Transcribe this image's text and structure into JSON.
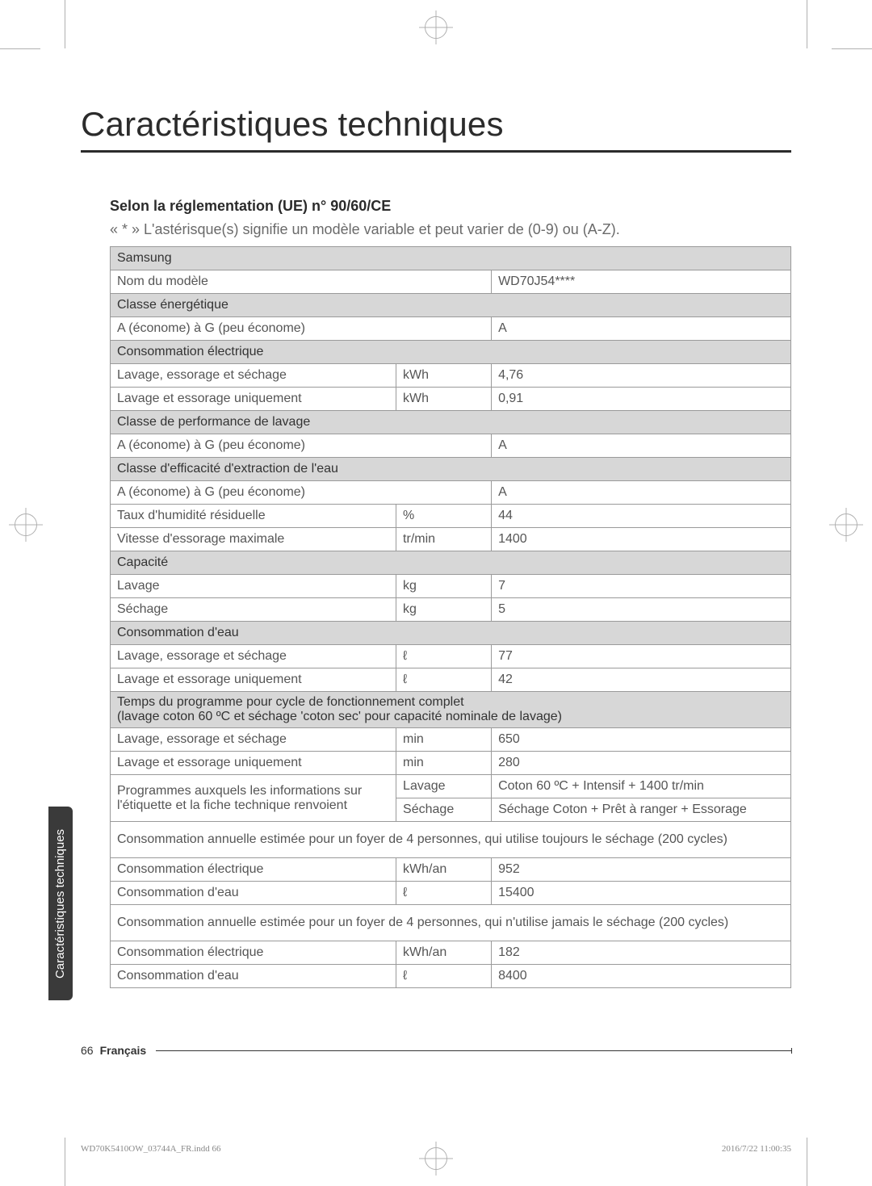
{
  "colors": {
    "text": "#4a4a4a",
    "heading": "#2b2b2b",
    "border": "#9a9a9a",
    "section_bg": "#d7d7d7",
    "sidetab_bg": "#3a3a3a",
    "crop": "#b0b0b0"
  },
  "title": "Caractéristiques techniques",
  "subhead": "Selon la réglementation (UE) n° 90/60/CE",
  "note": "« * » L'astérisque(s) signifie un modèle variable et peut varier de (0-9) ou (A-Z).",
  "side_tab": "Caractéristiques techniques",
  "footer": {
    "page": "66",
    "lang": "Français"
  },
  "print_meta": {
    "left": "WD70K5410OW_03744A_FR.indd   66",
    "right": "2016/7/22   11:00:35"
  },
  "table": {
    "rows": [
      {
        "type": "section",
        "label": "Samsung"
      },
      {
        "type": "data",
        "label": "Nom du modèle",
        "unit": "",
        "value": "WD70J54****",
        "merge_unit": true
      },
      {
        "type": "section",
        "label": "Classe énergétique"
      },
      {
        "type": "data",
        "label": "A (économe) à G (peu économe)",
        "unit": "",
        "value": "A",
        "merge_unit": true
      },
      {
        "type": "section",
        "label": "Consommation électrique"
      },
      {
        "type": "data",
        "label": "Lavage, essorage et séchage",
        "unit": "kWh",
        "value": "4,76"
      },
      {
        "type": "data",
        "label": "Lavage et essorage uniquement",
        "unit": "kWh",
        "value": "0,91"
      },
      {
        "type": "section",
        "label": "Classe de performance de lavage"
      },
      {
        "type": "data",
        "label": "A (économe) à G (peu économe)",
        "unit": "",
        "value": "A",
        "merge_unit": true
      },
      {
        "type": "section",
        "label": "Classe d'efficacité d'extraction de l'eau"
      },
      {
        "type": "data",
        "label": "A (économe) à G (peu économe)",
        "unit": "",
        "value": "A",
        "merge_unit": true
      },
      {
        "type": "data",
        "label": "Taux d'humidité résiduelle",
        "unit": "%",
        "value": "44"
      },
      {
        "type": "data",
        "label": "Vitesse d'essorage maximale",
        "unit": "tr/min",
        "value": "1400"
      },
      {
        "type": "section",
        "label": "Capacité"
      },
      {
        "type": "data",
        "label": "Lavage",
        "unit": "kg",
        "value": "7"
      },
      {
        "type": "data",
        "label": "Séchage",
        "unit": "kg",
        "value": "5"
      },
      {
        "type": "section",
        "label": "Consommation d'eau"
      },
      {
        "type": "data",
        "label": "Lavage, essorage et séchage",
        "unit": "ℓ",
        "value": "77"
      },
      {
        "type": "data",
        "label": "Lavage et essorage uniquement",
        "unit": "ℓ",
        "value": "42"
      },
      {
        "type": "section",
        "label": "Temps du programme pour cycle de fonctionnement complet\n(lavage coton 60 ºC et séchage 'coton sec' pour capacité nominale de lavage)"
      },
      {
        "type": "data",
        "label": "Lavage, essorage et séchage",
        "unit": "min",
        "value": "650"
      },
      {
        "type": "data",
        "label": "Lavage et essorage uniquement",
        "unit": "min",
        "value": "280"
      },
      {
        "type": "rowspan2",
        "label": "Programmes auxquels les informations sur l'étiquette et la fiche technique renvoient",
        "r1": {
          "unit": "Lavage",
          "value": "Coton 60 ºC + Intensif + 1400 tr/min"
        },
        "r2": {
          "unit": "Séchage",
          "value": "Séchage Coton + Prêt à ranger + Essorage"
        }
      },
      {
        "type": "fullrow",
        "label": "Consommation annuelle estimée pour un foyer de 4 personnes, qui utilise toujours le séchage (200 cycles)"
      },
      {
        "type": "data",
        "label": "Consommation électrique",
        "unit": "kWh/an",
        "value": "952"
      },
      {
        "type": "data",
        "label": "Consommation d'eau",
        "unit": "ℓ",
        "value": "15400"
      },
      {
        "type": "fullrow",
        "label": "Consommation annuelle estimée pour un foyer de 4 personnes, qui n'utilise jamais le séchage (200 cycles)"
      },
      {
        "type": "data",
        "label": "Consommation électrique",
        "unit": "kWh/an",
        "value": "182"
      },
      {
        "type": "data",
        "label": "Consommation d'eau",
        "unit": "ℓ",
        "value": "8400"
      }
    ]
  }
}
